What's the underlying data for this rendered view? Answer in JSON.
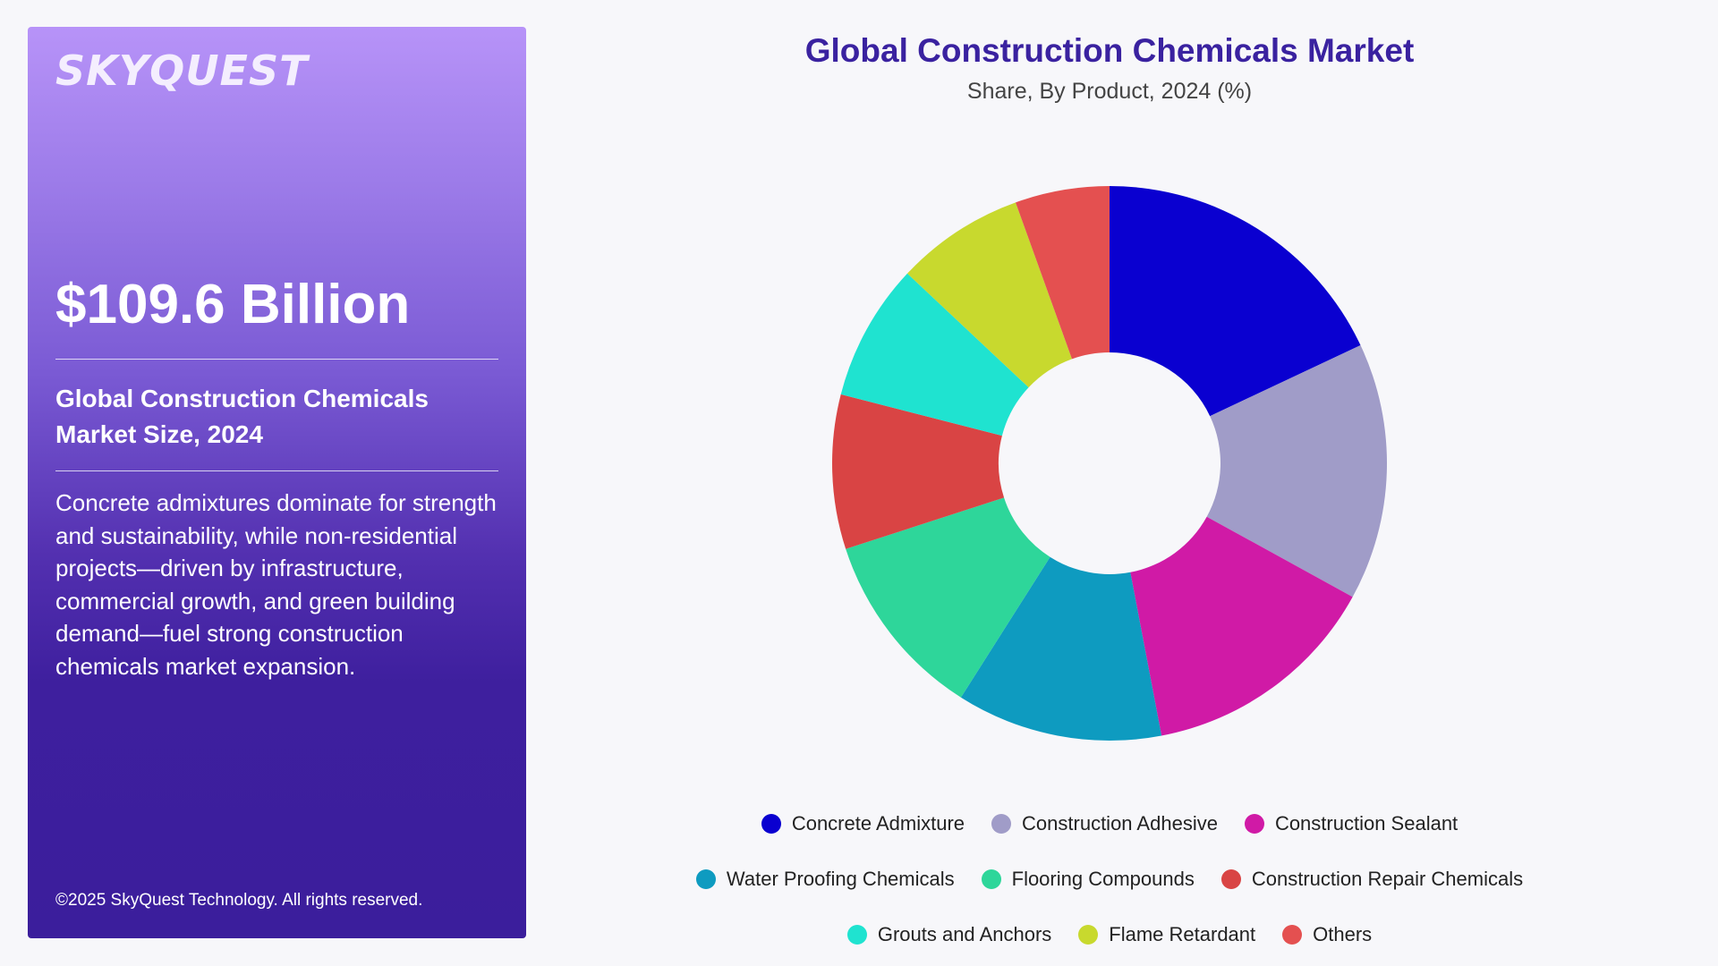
{
  "left_panel": {
    "logo_text": "SKYQUEST",
    "big_value": "$109.6 Billion",
    "subtitle_line1": "Global Construction Chemicals",
    "subtitle_line2": "Market Size, 2024",
    "description": "Concrete admixtures dominate for strength and sustainability, while non-residential projects—driven by infrastructure, commercial growth, and green building demand—fuel strong construction chemicals market expansion.",
    "copyright": "©2025 SkyQuest Technology. All rights reserved."
  },
  "chart_data": {
    "type": "pie",
    "style": "donut",
    "title": "Global Construction Chemicals Market",
    "subtitle": "Share, By Product, 2024 (%)",
    "categories": [
      "Concrete Admixture",
      "Construction Adhesive",
      "Construction Sealant",
      "Water Proofing Chemicals",
      "Flooring Compounds",
      "Construction Repair Chemicals",
      "Grouts and Anchors",
      "Flame Retardant",
      "Others"
    ],
    "values": [
      18.0,
      15.0,
      14.0,
      12.0,
      11.0,
      9.0,
      8.0,
      7.5,
      5.5
    ],
    "colors": [
      "#0a00d0",
      "#a09cc8",
      "#d01aa6",
      "#0e9bc0",
      "#2ed69a",
      "#d94444",
      "#1fe3d0",
      "#c8d92e",
      "#e45050"
    ],
    "legend_position": "bottom",
    "legend_rows": [
      [
        0,
        1,
        2
      ],
      [
        3,
        4,
        5
      ],
      [
        6,
        7,
        8
      ]
    ]
  }
}
